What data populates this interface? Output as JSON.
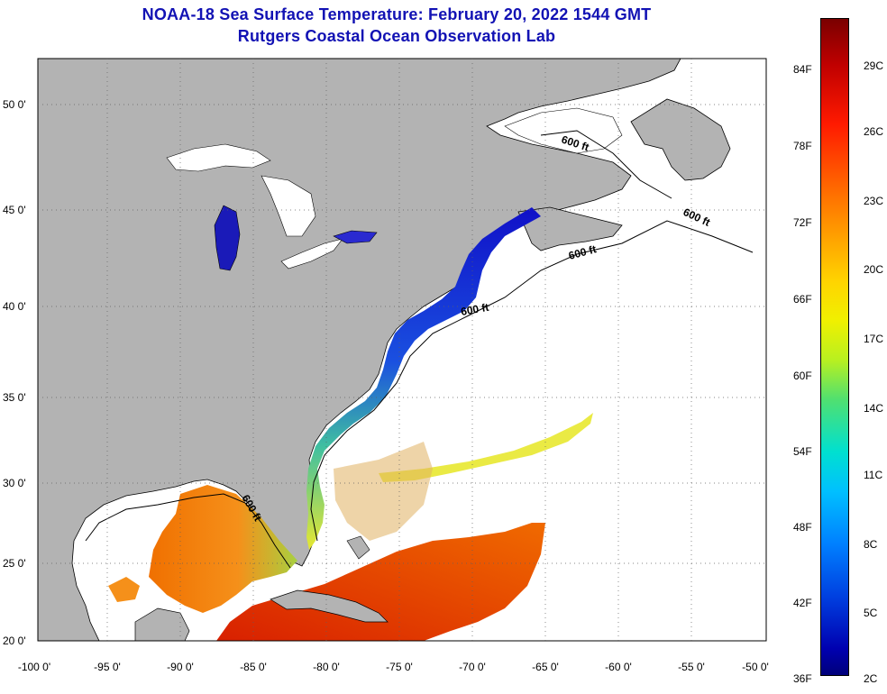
{
  "title": {
    "line1": "NOAA-18 Sea Surface Temperature:  February 20, 2022 1544 GMT",
    "line2": "Rutgers Coastal Ocean Observation Lab"
  },
  "axes": {
    "x_labels": [
      "-100 0'",
      "-95 0'",
      "-90 0'",
      "-85 0'",
      "-80 0'",
      "-75 0'",
      "-70 0'",
      "-65 0'",
      "-60 0'",
      "-55 0'",
      "-50 0'"
    ],
    "y_labels": [
      "50 0'",
      "45 0'",
      "40 0'",
      "35 0'",
      "30 0'",
      "25 0'",
      "20 0'"
    ]
  },
  "contour_label": "600 ft",
  "colorbar": {
    "f_labels": [
      "84F",
      "78F",
      "72F",
      "66F",
      "60F",
      "54F",
      "48F",
      "42F",
      "36F"
    ],
    "c_labels": [
      "29C",
      "26C",
      "23C",
      "20C",
      "17C",
      "14C",
      "11C",
      "8C",
      "5C",
      "2C"
    ]
  },
  "colors": {
    "land": "#b3b3b3",
    "water_nodata": "#ffffff",
    "title": "#1212b4"
  }
}
